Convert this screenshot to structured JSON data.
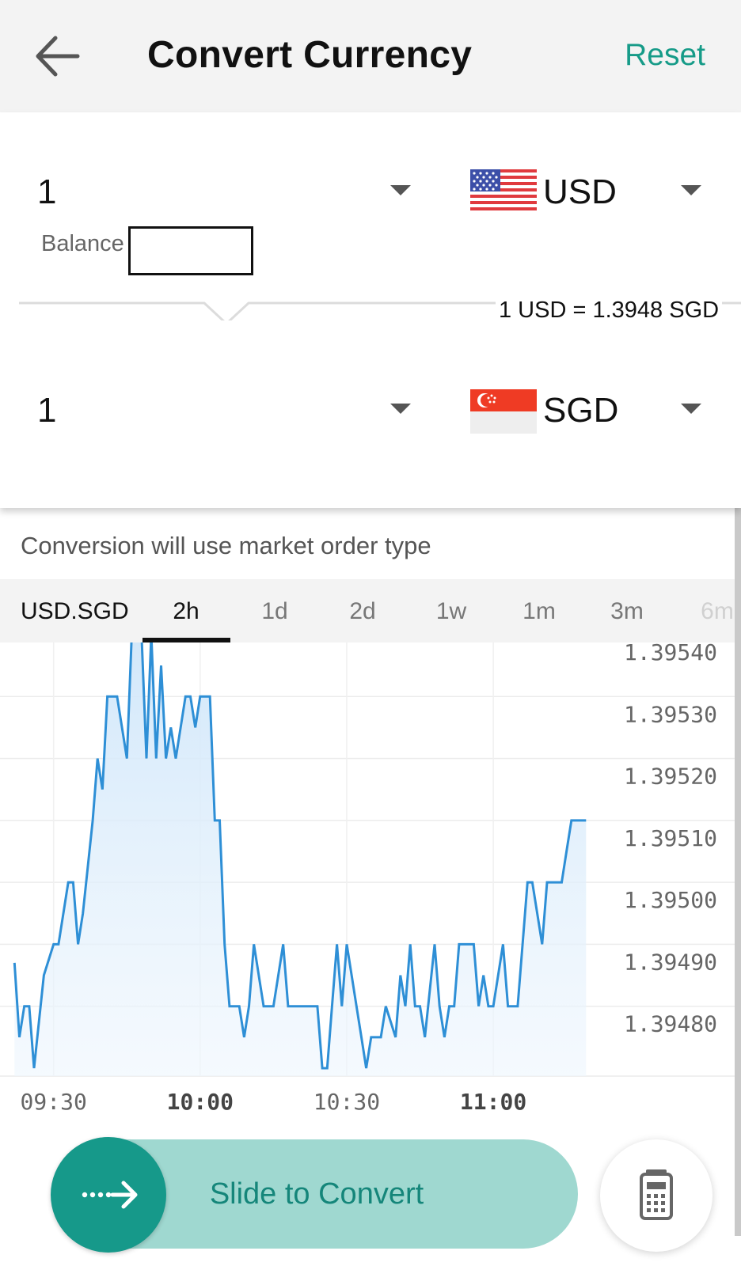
{
  "header": {
    "title": "Convert Currency",
    "reset_label": "Reset"
  },
  "converter": {
    "from": {
      "amount": "1",
      "currency": "USD",
      "flag_icon": "us-flag-icon"
    },
    "balance_label": "Balance",
    "rate_text": "1 USD = 1.3948 SGD",
    "to": {
      "amount": "1",
      "currency": "SGD",
      "flag_icon": "sg-flag-icon"
    }
  },
  "notice": "Conversion will use market order type",
  "tabs": {
    "symbol": "USD.SGD",
    "ranges": [
      "2h",
      "1d",
      "2d",
      "1w",
      "1m",
      "3m",
      "6m"
    ],
    "active": "2h"
  },
  "chart_data": {
    "type": "area",
    "symbol": "USD.SGD",
    "range": "2h",
    "y_ticks": [
      "1.39540",
      "1.39530",
      "1.39520",
      "1.39510",
      "1.39500",
      "1.39490",
      "1.39480"
    ],
    "ylim": [
      1.3947,
      1.3954
    ],
    "x_ticks": [
      {
        "label": "09:30",
        "minute": 570
      },
      {
        "label": "10:00",
        "minute": 600
      },
      {
        "label": "10:30",
        "minute": 630
      },
      {
        "label": "11:00",
        "minute": 660
      }
    ],
    "x_label_bold": [
      "10:00",
      "11:00"
    ],
    "time_unit": "minutes since midnight",
    "x": [
      562,
      563,
      564,
      565,
      566,
      568,
      570,
      571,
      573,
      574,
      575,
      576,
      578,
      579,
      580,
      581,
      582,
      583,
      585,
      586,
      587,
      588,
      589,
      590,
      591,
      592,
      593,
      594,
      595,
      597,
      598,
      599,
      600,
      601,
      602,
      603,
      604,
      605,
      606,
      608,
      609,
      610,
      611,
      613,
      614,
      615,
      617,
      618,
      619,
      620,
      621,
      622,
      624,
      625,
      626,
      627,
      628,
      629,
      630,
      632,
      633,
      634,
      635,
      636,
      637,
      638,
      640,
      641,
      642,
      643,
      644,
      645,
      646,
      648,
      649,
      650,
      651,
      652,
      653,
      655,
      656,
      657,
      658,
      659,
      660,
      662,
      663,
      664,
      665,
      666,
      667,
      668,
      670,
      671,
      672,
      673,
      674,
      675,
      676,
      678,
      679
    ],
    "y": [
      1.39487,
      1.39475,
      1.3948,
      1.3948,
      1.3947,
      1.39485,
      1.3949,
      1.3949,
      1.395,
      1.395,
      1.3949,
      1.39495,
      1.3951,
      1.3952,
      1.39515,
      1.3953,
      1.3953,
      1.3953,
      1.3952,
      1.3954,
      1.3954,
      1.3954,
      1.3952,
      1.3954,
      1.3952,
      1.39535,
      1.3952,
      1.39525,
      1.3952,
      1.3953,
      1.3953,
      1.39525,
      1.3953,
      1.3953,
      1.3953,
      1.3951,
      1.3951,
      1.3949,
      1.3948,
      1.3948,
      1.39475,
      1.3948,
      1.3949,
      1.3948,
      1.3948,
      1.3948,
      1.3949,
      1.3948,
      1.3948,
      1.3948,
      1.3948,
      1.3948,
      1.3948,
      1.3947,
      1.3947,
      1.3948,
      1.3949,
      1.3948,
      1.3949,
      1.3948,
      1.39475,
      1.3947,
      1.39475,
      1.39475,
      1.39475,
      1.3948,
      1.39475,
      1.39485,
      1.3948,
      1.3949,
      1.3948,
      1.3948,
      1.39475,
      1.3949,
      1.3948,
      1.39475,
      1.3948,
      1.3948,
      1.3949,
      1.3949,
      1.3949,
      1.3948,
      1.39485,
      1.3948,
      1.3948,
      1.3949,
      1.3948,
      1.3948,
      1.3948,
      1.3949,
      1.395,
      1.395,
      1.3949,
      1.395,
      1.395,
      1.395,
      1.395,
      1.39505,
      1.3951,
      1.3951,
      1.3951
    ],
    "line_color": "#2e8fd6",
    "fill_color": "#d6ebfb",
    "grid": true
  },
  "slider": {
    "label": "Slide to Convert",
    "icon": "arrow-right-dotted-icon"
  },
  "calculator": {
    "icon": "calculator-icon"
  },
  "colors": {
    "accent": "#169b88",
    "slider_track": "#9fd8d0",
    "slider_knob": "#16998a"
  }
}
